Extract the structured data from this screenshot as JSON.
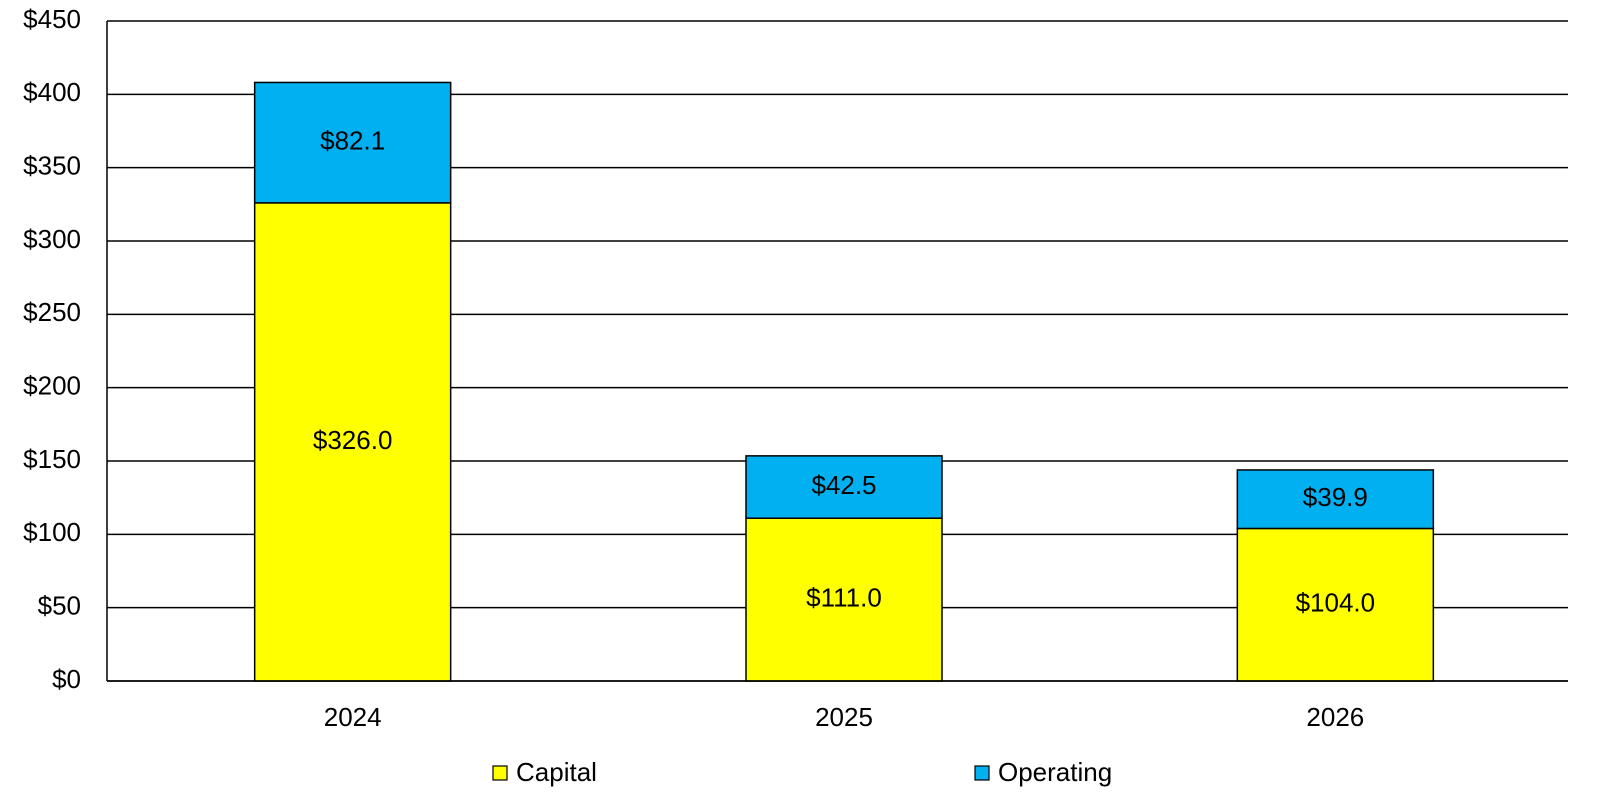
{
  "chart_data": {
    "type": "stacked_bar",
    "categories": [
      "2024",
      "2025",
      "2026"
    ],
    "series": [
      {
        "name": "Capital",
        "color": "#ffff00",
        "values": [
          326.0,
          111.0,
          104.0
        ],
        "value_labels": [
          "$326.0",
          "$111.0",
          "$104.0"
        ]
      },
      {
        "name": "Operating",
        "color": "#00b0f0",
        "values": [
          82.1,
          42.5,
          39.9
        ],
        "value_labels": [
          "$82.1",
          "$42.5",
          "$39.9"
        ]
      }
    ],
    "ylim": [
      0,
      450
    ],
    "yticks": [
      {
        "value": 0,
        "label": "$0"
      },
      {
        "value": 50,
        "label": "$50"
      },
      {
        "value": 100,
        "label": "$100"
      },
      {
        "value": 150,
        "label": "$150"
      },
      {
        "value": 200,
        "label": "$200"
      },
      {
        "value": 250,
        "label": "$250"
      },
      {
        "value": 300,
        "label": "$300"
      },
      {
        "value": 350,
        "label": "$350"
      },
      {
        "value": 400,
        "label": "$400"
      },
      {
        "value": 450,
        "label": "$450"
      }
    ],
    "grid": true,
    "legend": "bottom"
  }
}
